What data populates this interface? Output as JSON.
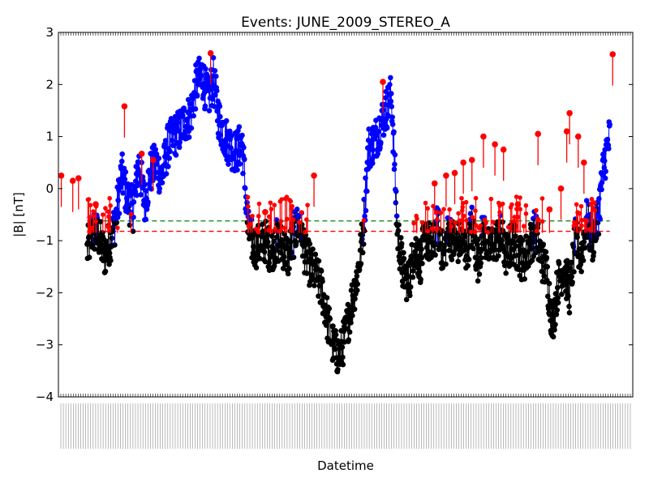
{
  "chart_data": {
    "type": "scatter",
    "title": "Events: JUNE_2009_STEREO_A",
    "xlabel": "Datetime",
    "ylabel": "|B| [nT]",
    "ylim": [
      -4,
      3
    ],
    "yticks": [
      3,
      2,
      1,
      0,
      -1,
      -2,
      -3,
      -4
    ],
    "ytick_labels": [
      "3",
      "2",
      "1",
      "0",
      "−1",
      "−2",
      "−3",
      "−4"
    ],
    "xlim": [
      0,
      100
    ],
    "x_tick_count": 230,
    "grid": false,
    "colors": {
      "below_threshold": "#000000",
      "above_threshold": "#0000ff",
      "event_peaks": "#ff0000",
      "green_threshold": "#008000",
      "red_threshold": "#ff0000"
    },
    "thresholds": [
      {
        "y": -0.62,
        "color": "#008000",
        "style": "dashed"
      },
      {
        "y": -0.82,
        "color": "#ff0000",
        "style": "dashed"
      }
    ],
    "series_profile": {
      "x": [
        0,
        1,
        2,
        3,
        4,
        5,
        6,
        7,
        8,
        9,
        10,
        11,
        12,
        13,
        14,
        15,
        16,
        17,
        18,
        19,
        20,
        21,
        22,
        23,
        24,
        25,
        26,
        27,
        28,
        29,
        30,
        31,
        32,
        33,
        34,
        35,
        36,
        37,
        38,
        39,
        40,
        41,
        42,
        43,
        44,
        45,
        46,
        47,
        48,
        49,
        50,
        51,
        52,
        53,
        54,
        55,
        56,
        57,
        58,
        59,
        60,
        61,
        62,
        63,
        64,
        65,
        66,
        67,
        68,
        69,
        70,
        71,
        72,
        73,
        74,
        75,
        76,
        77,
        78,
        79,
        80,
        81,
        82,
        83,
        84,
        85,
        86,
        87,
        88,
        89,
        90,
        91,
        92,
        93,
        94,
        95,
        96,
        97,
        98,
        99,
        100
      ],
      "y": [
        -1.1,
        -1.2,
        -0.9,
        -1.1,
        -1.0,
        -1.2,
        -0.8,
        -0.9,
        -1.3,
        -1.0,
        -0.6,
        0.3,
        -0.2,
        -0.4,
        0.5,
        -0.3,
        0.3,
        0.5,
        0.2,
        0.8,
        1.0,
        1.1,
        1.3,
        1.4,
        2.0,
        2.2,
        1.7,
        2.1,
        1.3,
        1.0,
        0.8,
        0.7,
        0.9,
        -0.8,
        -1.1,
        -1.1,
        -1.0,
        -1.2,
        -1.0,
        -1.1,
        -1.3,
        -0.9,
        -0.6,
        -1.3,
        -1.5,
        -1.7,
        -2.0,
        -2.6,
        -3.1,
        -3.2,
        -2.8,
        -2.2,
        -1.7,
        -0.9,
        0.8,
        0.9,
        1.2,
        1.5,
        1.8,
        -0.8,
        -1.6,
        -1.8,
        -1.1,
        -1.4,
        -0.9,
        -1.2,
        -0.7,
        -1.3,
        -0.8,
        -1.1,
        -1.0,
        -1.2,
        -0.7,
        -1.4,
        -0.8,
        -1.2,
        -1.0,
        -0.9,
        -1.3,
        -1.0,
        -1.2,
        -1.4,
        -1.1,
        -0.8,
        -1.3,
        -1.6,
        -2.6,
        -1.8,
        -1.5,
        -2.0,
        -1.0,
        -1.3,
        -0.6,
        -1.0,
        -0.5,
        0.5,
        1.0,
        1.5,
        1.7,
        1.9,
        1.7
      ]
    },
    "event_peaks": {
      "x": [
        0.5,
        2.5,
        3.5,
        6.5,
        11.5,
        14.5,
        16.5,
        26.5,
        36,
        44.5,
        56.5,
        65.5,
        67.5,
        69,
        70.5,
        72,
        74,
        76,
        77.5,
        80,
        83.5,
        85.5,
        87.5,
        88.5,
        89,
        90.5,
        91.5,
        96.5
      ],
      "y": [
        0.25,
        0.15,
        0.2,
        -0.3,
        1.58,
        0.67,
        0.55,
        2.6,
        -0.45,
        0.25,
        2.05,
        0.1,
        0.25,
        0.3,
        0.5,
        0.55,
        1.0,
        0.85,
        0.75,
        -0.3,
        1.05,
        -0.4,
        0.0,
        1.1,
        1.45,
        1.0,
        0.5,
        2.58
      ]
    }
  }
}
